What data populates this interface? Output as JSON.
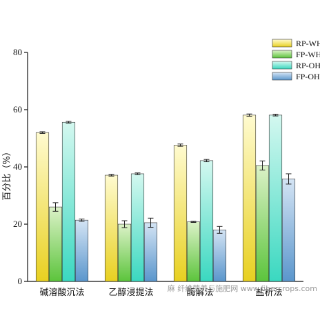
{
  "chart_data": {
    "type": "bar",
    "categories": [
      "碱溶酸沉法",
      "乙醇浸提法",
      "酶解法",
      "盐析法"
    ],
    "series": [
      {
        "name": "RP-WH",
        "values": [
          52.0,
          37.1,
          47.6,
          58.1
        ],
        "errors": [
          0.3,
          0.3,
          0.4,
          0.4
        ],
        "color_top": "#fffbd0",
        "color_bottom": "#e8d020"
      },
      {
        "name": "FP-WH",
        "values": [
          26.0,
          20.0,
          20.8,
          40.5
        ],
        "errors": [
          1.5,
          1.2,
          0.2,
          1.6
        ],
        "color_top": "#dcf2c8",
        "color_bottom": "#5cc43c"
      },
      {
        "name": "RP-OH",
        "values": [
          55.6,
          37.6,
          42.2,
          58.1
        ],
        "errors": [
          0.3,
          0.3,
          0.4,
          0.3
        ],
        "color_top": "#d4f8f0",
        "color_bottom": "#3ad8c0"
      },
      {
        "name": "FP-OH",
        "values": [
          21.4,
          20.5,
          18.0,
          35.8
        ],
        "errors": [
          0.4,
          1.6,
          1.2,
          1.8
        ],
        "color_top": "#d4e4f4",
        "color_bottom": "#5a96cc"
      }
    ],
    "ylabel": "百分比（%）",
    "xlabel": "",
    "ylim": [
      0,
      80
    ],
    "yticks": [
      0,
      20,
      40,
      60,
      80
    ],
    "legend_position": "top-right",
    "grid": false
  },
  "watermark": "麻  纤维营养与施肥网 www.fibercrops.com"
}
